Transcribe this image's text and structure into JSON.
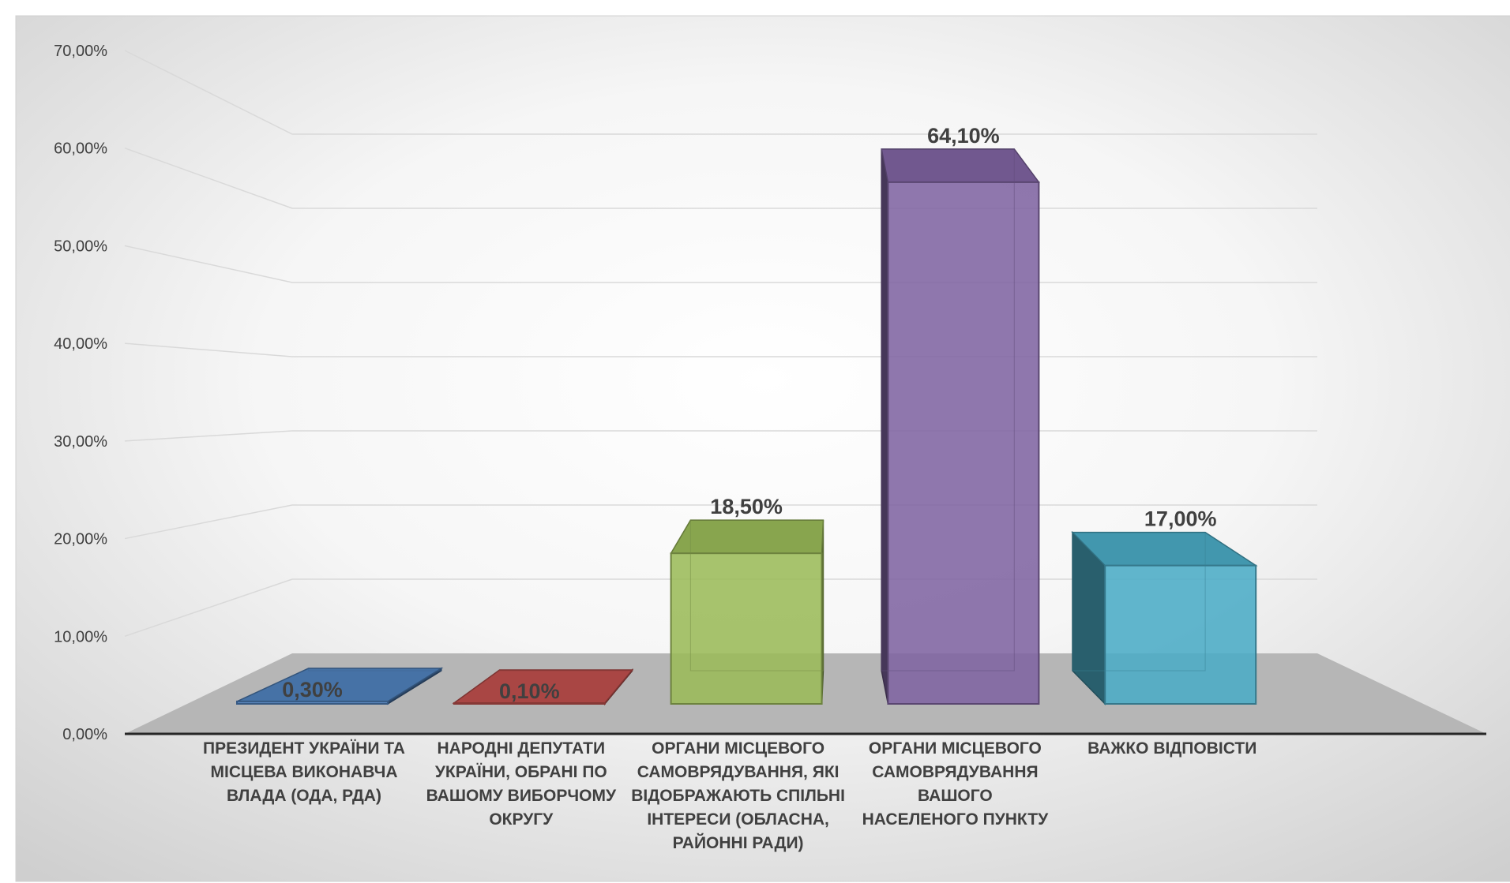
{
  "chart_data": {
    "type": "bar",
    "style": "3d-clustered-column",
    "title": "",
    "xlabel": "",
    "ylabel": "",
    "ylim": [
      0,
      70
    ],
    "y_tick_labels": [
      "0,00%",
      "10,00%",
      "20,00%",
      "30,00%",
      "40,00%",
      "50,00%",
      "60,00%",
      "70,00%"
    ],
    "grid": true,
    "legend": "none",
    "categories": [
      "ПРЕЗИДЕНТ УКРАЇНИ ТА МІСЦЕВА ВИКОНАВЧА ВЛАДА (ОДА, РДА)",
      "НАРОДНІ ДЕПУТАТИ УКРАЇНИ, ОБРАНІ ПО ВАШОМУ ВИБОРЧОМУ ОКРУГУ",
      "ОРГАНИ МІСЦЕВОГО САМОВРЯДУВАННЯ, ЯКІ ВІДОБРАЖАЮТЬ СПІЛЬНІ ІНТЕРЕСИ (ОБЛАСНА, РАЙОННІ РАДИ)",
      "ОРГАНИ МІСЦЕВОГО САМОВРЯДУВАННЯ ВАШОГО НАСЕЛЕНОГО ПУНКТУ",
      "ВАЖКО ВІДПОВІСТИ"
    ],
    "category_lines": [
      [
        "ПРЕЗИДЕНТ УКРАЇНИ ТА",
        "МІСЦЕВА ВИКОНАВЧА",
        "ВЛАДА (ОДА, РДА)"
      ],
      [
        "НАРОДНІ ДЕПУТАТИ",
        "УКРАЇНИ, ОБРАНІ ПО",
        "ВАШОМУ ВИБОРЧОМУ",
        "ОКРУГУ"
      ],
      [
        "ОРГАНИ МІСЦЕВОГО",
        "САМОВРЯДУВАННЯ, ЯКІ",
        "ВІДОБРАЖАЮТЬ СПІЛЬНІ",
        "ІНТЕРЕСИ (ОБЛАСНА,",
        "РАЙОННІ РАДИ)"
      ],
      [
        "ОРГАНИ МІСЦЕВОГО",
        "САМОВРЯДУВАННЯ ВАШОГО",
        "НАСЕЛЕНОГО ПУНКТУ"
      ],
      [
        "ВАЖКО ВІДПОВІСТИ"
      ]
    ],
    "values": [
      0.3,
      0.1,
      18.5,
      64.1,
      17.0
    ],
    "data_labels": [
      "0,30%",
      "0,10%",
      "18,50%",
      "64,10%",
      "17,00%"
    ],
    "colors": [
      "#4f81bd",
      "#c0504d",
      "#9bbb59",
      "#8064a2",
      "#4bacc6"
    ]
  }
}
